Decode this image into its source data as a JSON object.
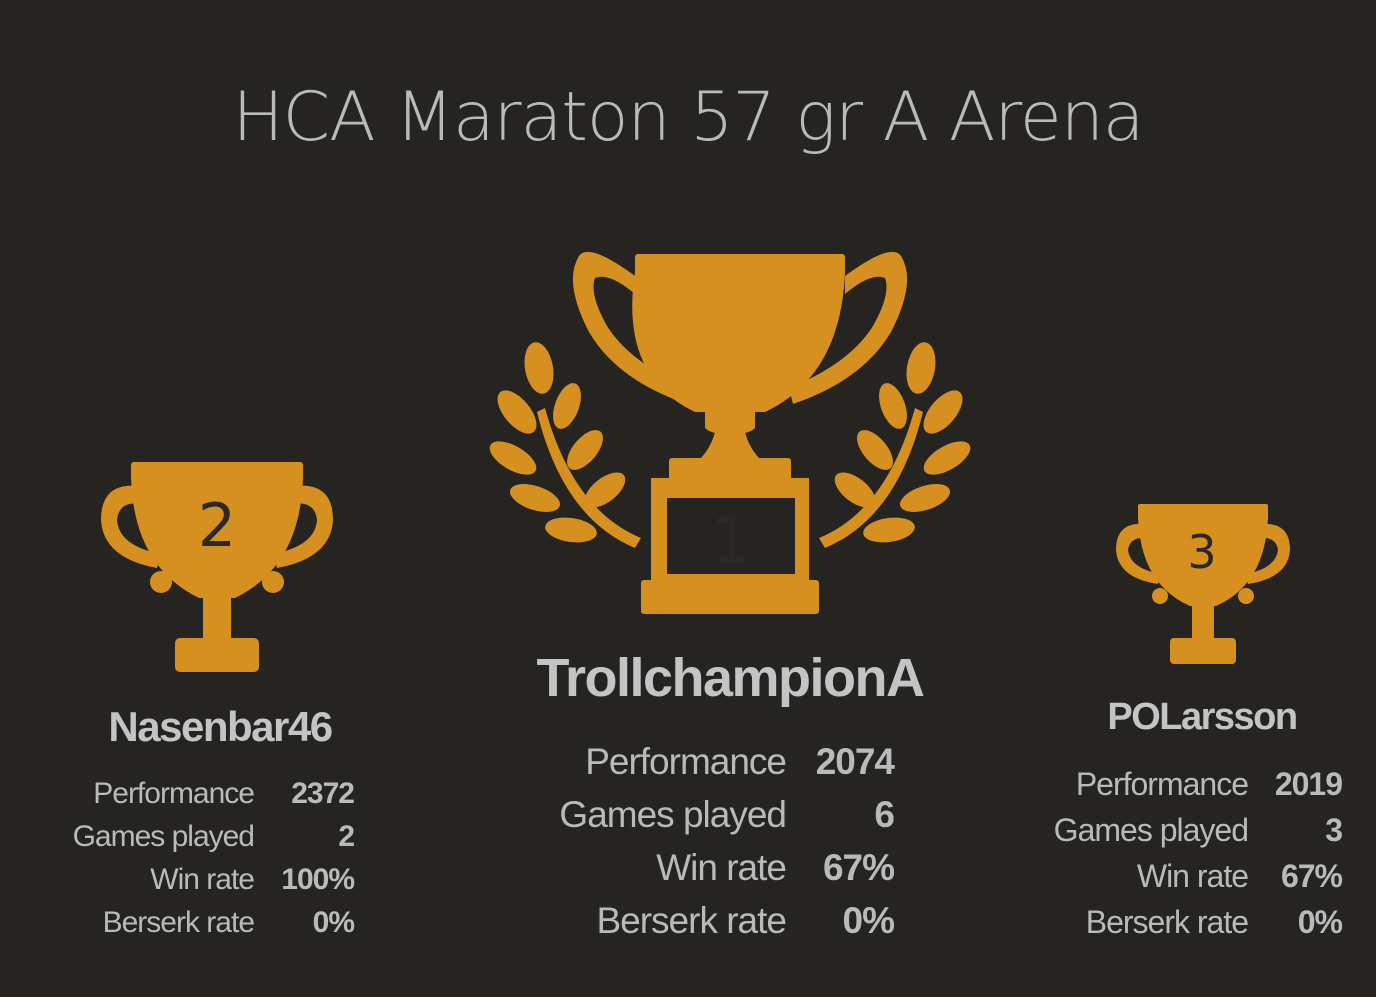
{
  "tournament": {
    "title": "HCA Maraton 57 gr A Arena"
  },
  "podium": {
    "first": {
      "rank": "1",
      "name": "TrollchampionA",
      "stats": [
        {
          "label": "Performance",
          "value": "2074"
        },
        {
          "label": "Games played",
          "value": "6"
        },
        {
          "label": "Win rate",
          "value": "67%"
        },
        {
          "label": "Berserk rate",
          "value": "0%"
        }
      ]
    },
    "second": {
      "rank": "2",
      "name": "Nasenbar46",
      "stats": [
        {
          "label": "Performance",
          "value": "2372"
        },
        {
          "label": "Games played",
          "value": "2"
        },
        {
          "label": "Win rate",
          "value": "100%"
        },
        {
          "label": "Berserk rate",
          "value": "0%"
        }
      ]
    },
    "third": {
      "rank": "3",
      "name": "POLarsson",
      "stats": [
        {
          "label": "Performance",
          "value": "2019"
        },
        {
          "label": "Games played",
          "value": "3"
        },
        {
          "label": "Win rate",
          "value": "67%"
        },
        {
          "label": "Berserk rate",
          "value": "0%"
        }
      ]
    }
  },
  "colors": {
    "background": "#262421",
    "trophy": "#d59020",
    "text": "#bababa",
    "name": "#c4c4c4"
  },
  "icons": {
    "first": "trophy-with-laurels-icon",
    "second": "trophy-cup-icon",
    "third": "trophy-cup-icon"
  }
}
